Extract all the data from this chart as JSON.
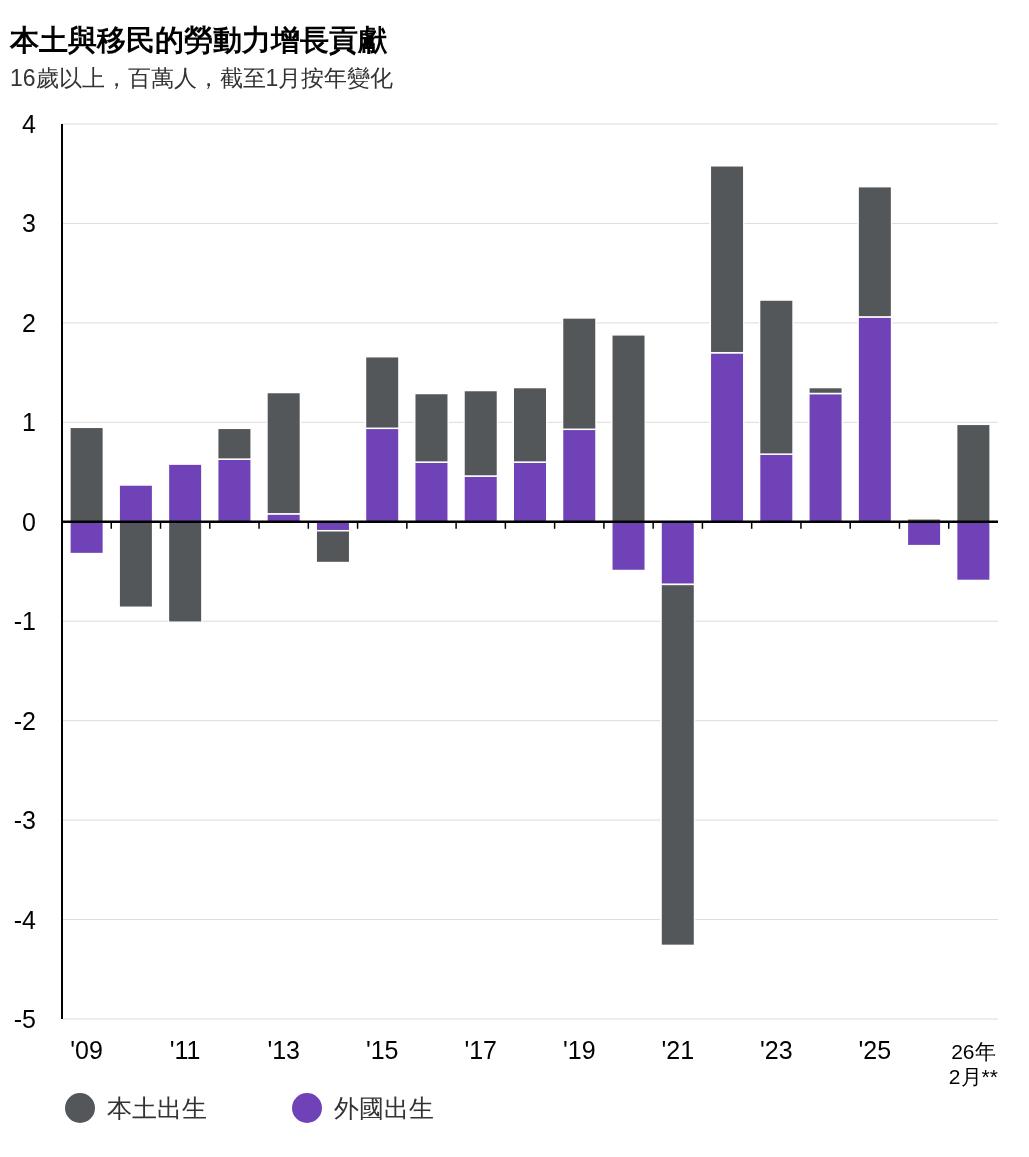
{
  "chart_data": {
    "type": "bar",
    "stacked": true,
    "title": "本土與移民的勞動力增長貢獻",
    "subtitle": "16歲以上，百萬人，截至1月按年變化",
    "categories": [
      "'09",
      null,
      "'11",
      null,
      "'13",
      null,
      "'15",
      null,
      "'17",
      null,
      "'19",
      null,
      "'21",
      null,
      "'23",
      null,
      "'25",
      null,
      "26年\n2月**"
    ],
    "series": [
      {
        "name": "外國出生",
        "color": "#6f42b8",
        "values": [
          -0.32,
          0.37,
          0.58,
          0.63,
          0.08,
          -0.09,
          0.94,
          0.6,
          0.46,
          0.6,
          0.93,
          -0.49,
          -0.63,
          1.7,
          0.68,
          1.29,
          2.06,
          -0.24,
          -0.59
        ]
      },
      {
        "name": "本土出生",
        "color": "#54575a",
        "values": [
          0.95,
          -0.86,
          -1.01,
          0.31,
          1.22,
          -0.32,
          0.72,
          0.69,
          0.86,
          0.75,
          1.12,
          1.88,
          -3.63,
          1.88,
          1.55,
          0.06,
          1.31,
          0.03,
          0.98
        ]
      }
    ],
    "ylim": [
      -5,
      4
    ],
    "yticks": [
      -5,
      -4,
      -3,
      -2,
      -1,
      0,
      1,
      2,
      3,
      4
    ],
    "grid": "y",
    "legend": "bottom left"
  }
}
